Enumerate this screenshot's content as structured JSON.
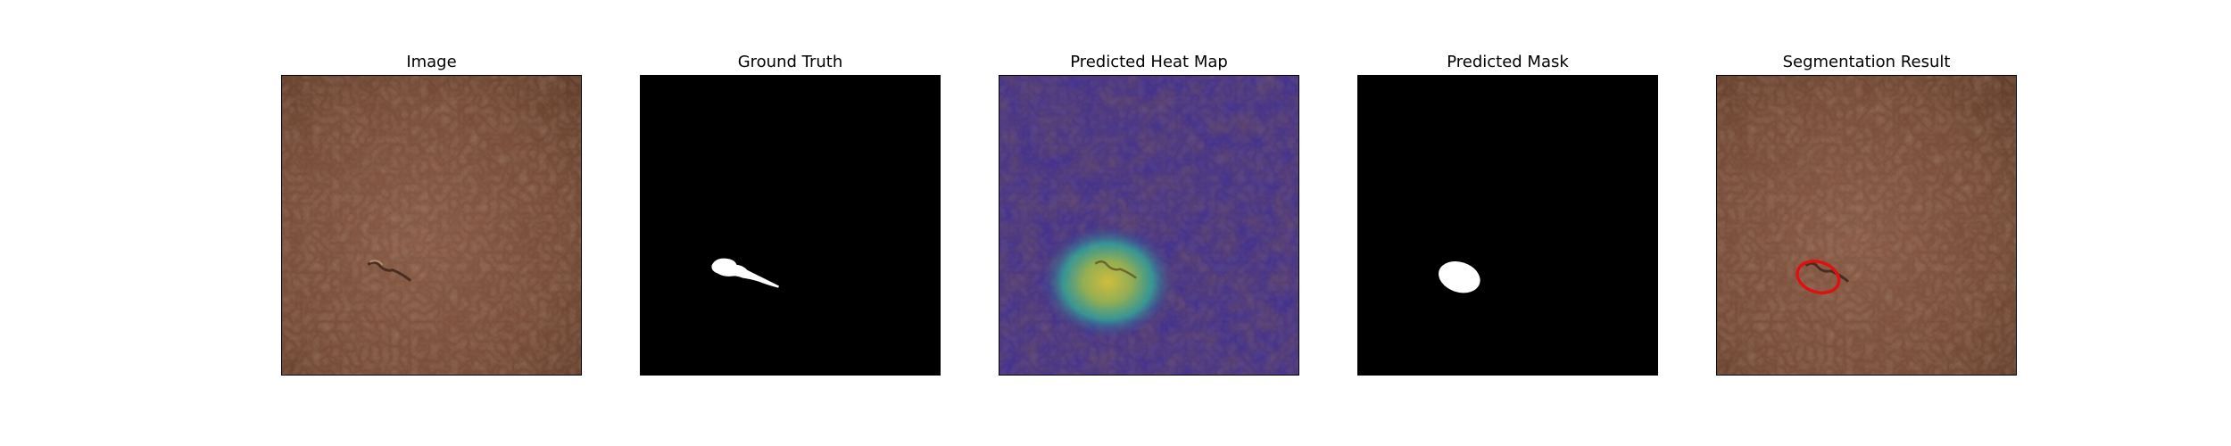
{
  "figure": {
    "panels": [
      {
        "title": "Image",
        "kind": "leather-image"
      },
      {
        "title": "Ground Truth",
        "kind": "ground-truth-mask"
      },
      {
        "title": "Predicted Heat Map",
        "kind": "heatmap-overlay"
      },
      {
        "title": "Predicted Mask",
        "kind": "predicted-mask"
      },
      {
        "title": "Segmentation Result",
        "kind": "segmentation-contour"
      }
    ]
  },
  "colors": {
    "background": "#ffffff",
    "leather": "#7a4c37",
    "leather_dark": "#5e3828",
    "mask_background": "#000000",
    "mask_foreground": "#ffffff",
    "heatmap_low": "#3a2a9a",
    "heatmap_mid": "#2fb39a",
    "heatmap_high": "#d4c23a",
    "contour": "#e01010"
  }
}
